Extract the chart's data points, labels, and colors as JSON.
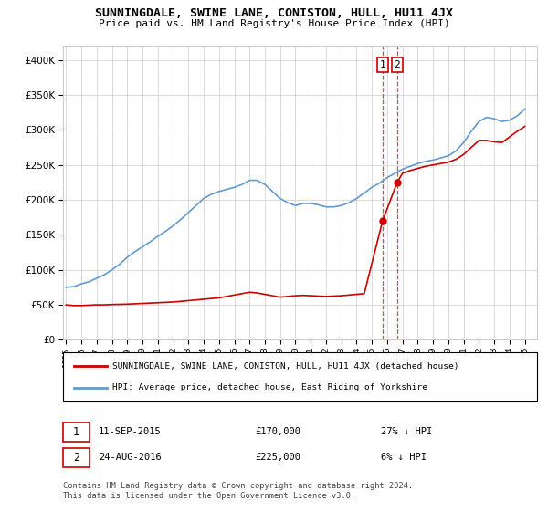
{
  "title": "SUNNINGDALE, SWINE LANE, CONISTON, HULL, HU11 4JX",
  "subtitle": "Price paid vs. HM Land Registry's House Price Index (HPI)",
  "legend_label_red": "SUNNINGDALE, SWINE LANE, CONISTON, HULL, HU11 4JX (detached house)",
  "legend_label_blue": "HPI: Average price, detached house, East Riding of Yorkshire",
  "point1_label": "1",
  "point1_date": "11-SEP-2015",
  "point1_price": "£170,000",
  "point1_hpi": "27% ↓ HPI",
  "point1_x": 2015.7,
  "point1_y": 170000,
  "point2_label": "2",
  "point2_date": "24-AUG-2016",
  "point2_price": "£225,000",
  "point2_hpi": "6% ↓ HPI",
  "point2_x": 2016.65,
  "point2_y": 225000,
  "footer": "Contains HM Land Registry data © Crown copyright and database right 2024.\nThis data is licensed under the Open Government Licence v3.0.",
  "ylim": [
    0,
    420000
  ],
  "xlim": [
    1994.8,
    2025.8
  ],
  "background_color": "#ffffff",
  "grid_color": "#cccccc",
  "red_color": "#cc0000",
  "blue_color": "#6699cc",
  "dashed_color": "#dd3333",
  "hpi_years": [
    1995,
    1995.5,
    1996,
    1996.5,
    1997,
    1997.5,
    1998,
    1998.5,
    1999,
    1999.5,
    2000,
    2000.5,
    2001,
    2001.5,
    2002,
    2002.5,
    2003,
    2003.5,
    2004,
    2004.5,
    2005,
    2005.5,
    2006,
    2006.5,
    2007,
    2007.5,
    2008,
    2008.5,
    2009,
    2009.5,
    2010,
    2010.5,
    2011,
    2011.5,
    2012,
    2012.5,
    2013,
    2013.5,
    2014,
    2014.5,
    2015,
    2015.5,
    2016,
    2016.5,
    2017,
    2017.5,
    2018,
    2018.5,
    2019,
    2019.5,
    2020,
    2020.5,
    2021,
    2021.5,
    2022,
    2022.5,
    2023,
    2023.5,
    2024,
    2024.5,
    2025
  ],
  "hpi_values": [
    75000,
    76000,
    80000,
    83000,
    88000,
    93000,
    100000,
    108000,
    118000,
    126000,
    133000,
    140000,
    148000,
    155000,
    163000,
    172000,
    182000,
    192000,
    202000,
    208000,
    212000,
    215000,
    218000,
    222000,
    228000,
    228000,
    222000,
    212000,
    202000,
    196000,
    192000,
    195000,
    195000,
    193000,
    190000,
    190000,
    192000,
    196000,
    202000,
    210000,
    218000,
    224000,
    232000,
    238000,
    244000,
    248000,
    252000,
    255000,
    257000,
    260000,
    263000,
    270000,
    282000,
    298000,
    312000,
    318000,
    316000,
    312000,
    314000,
    320000,
    330000
  ],
  "red_years": [
    1995,
    1995.5,
    1996,
    1996.5,
    1997,
    1997.5,
    1998,
    1999,
    2000,
    2001,
    2002,
    2003,
    2004,
    2005,
    2005.5,
    2006,
    2006.5,
    2007,
    2007.5,
    2008,
    2008.5,
    2009,
    2009.5,
    2010,
    2010.5,
    2011,
    2011.5,
    2012,
    2012.5,
    2013,
    2013.5,
    2014,
    2014.5,
    2015.7,
    2016.65,
    2017,
    2017.5,
    2018,
    2018.5,
    2019,
    2019.5,
    2020,
    2020.5,
    2021,
    2021.5,
    2022,
    2022.5,
    2023,
    2023.5,
    2024,
    2024.5,
    2025
  ],
  "red_values": [
    50000,
    49000,
    49000,
    49500,
    50000,
    50000,
    50500,
    51000,
    52000,
    53000,
    54000,
    56000,
    58000,
    60000,
    62000,
    64000,
    66000,
    68000,
    67000,
    65000,
    63000,
    61000,
    62000,
    63000,
    63500,
    63000,
    62500,
    62000,
    62500,
    63000,
    64000,
    65000,
    66000,
    170000,
    225000,
    238000,
    242000,
    245000,
    248000,
    250000,
    252000,
    254000,
    258000,
    265000,
    275000,
    285000,
    285000,
    283000,
    282000,
    290000,
    298000,
    305000
  ]
}
